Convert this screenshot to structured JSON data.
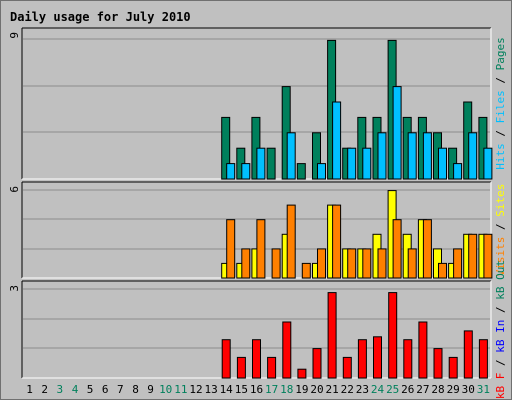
{
  "chart_data": {
    "type": "bar",
    "title": "Daily usage for July 2010",
    "categories": [
      "1",
      "2",
      "3",
      "4",
      "5",
      "6",
      "7",
      "8",
      "9",
      "10",
      "11",
      "12",
      "13",
      "14",
      "15",
      "16",
      "17",
      "18",
      "19",
      "20",
      "21",
      "22",
      "23",
      "24",
      "25",
      "26",
      "27",
      "28",
      "29",
      "30",
      "31"
    ],
    "weekend_days": [
      "3",
      "4",
      "10",
      "11",
      "17",
      "18",
      "24",
      "25",
      "31"
    ],
    "colors": {
      "title": "#0000cc",
      "hits": "#00805c",
      "files": "#00c0ff",
      "pages": "#00c0ff",
      "visits": "#ffff00",
      "sites": "#ff8000",
      "kb_f": "#ff0000",
      "kb_in": "#0000ff",
      "kb_out": "#00805c",
      "weekday_label": "#000000",
      "weekend_label": "#00805c"
    },
    "panels": [
      {
        "name": "hits-files-pages",
        "ymax": 9,
        "ymax_label": "9",
        "series_labels": [
          "Hits",
          "Files",
          "Pages"
        ],
        "series": [
          {
            "name": "Hits",
            "values": [
              0,
              0,
              0,
              0,
              0,
              0,
              0,
              0,
              0,
              0,
              0,
              0,
              0,
              4,
              2,
              4,
              2,
              6,
              1,
              3,
              9,
              2,
              4,
              4,
              9,
              4,
              4,
              3,
              2,
              5,
              4
            ]
          },
          {
            "name": "Files",
            "values": [
              0,
              0,
              0,
              0,
              0,
              0,
              0,
              0,
              0,
              0,
              0,
              0,
              0,
              1,
              1,
              2,
              0,
              3,
              0,
              1,
              5,
              2,
              2,
              3,
              6,
              3,
              3,
              2,
              1,
              3,
              2
            ]
          }
        ]
      },
      {
        "name": "visits-sites",
        "ymax": 6,
        "ymax_label": "6",
        "series_labels": [
          "Visits",
          "Sites"
        ],
        "series": [
          {
            "name": "Visits",
            "values": [
              0,
              0,
              0,
              0,
              0,
              0,
              0,
              0,
              0,
              0,
              0,
              0,
              0,
              1,
              1,
              2,
              0,
              3,
              0,
              1,
              5,
              2,
              2,
              3,
              6,
              3,
              4,
              2,
              1,
              3,
              3
            ]
          },
          {
            "name": "Sites",
            "values": [
              0,
              0,
              0,
              0,
              0,
              0,
              0,
              0,
              0,
              0,
              0,
              0,
              0,
              4,
              2,
              4,
              2,
              5,
              1,
              2,
              5,
              2,
              2,
              2,
              4,
              2,
              4,
              1,
              2,
              3,
              3
            ]
          }
        ]
      },
      {
        "name": "kbytes",
        "ymax": 3,
        "ymax_label": "3",
        "series_labels": [
          "kB F",
          "kB In",
          "kB Out"
        ],
        "series": [
          {
            "name": "kB F",
            "values": [
              0,
              0,
              0,
              0,
              0,
              0,
              0,
              0,
              0,
              0,
              0,
              0,
              0,
              1.3,
              0.7,
              1.3,
              0.7,
              1.9,
              0.3,
              1.0,
              2.9,
              0.7,
              1.3,
              1.4,
              2.9,
              1.3,
              1.9,
              1.0,
              0.7,
              1.6,
              1.3
            ]
          }
        ]
      }
    ]
  }
}
